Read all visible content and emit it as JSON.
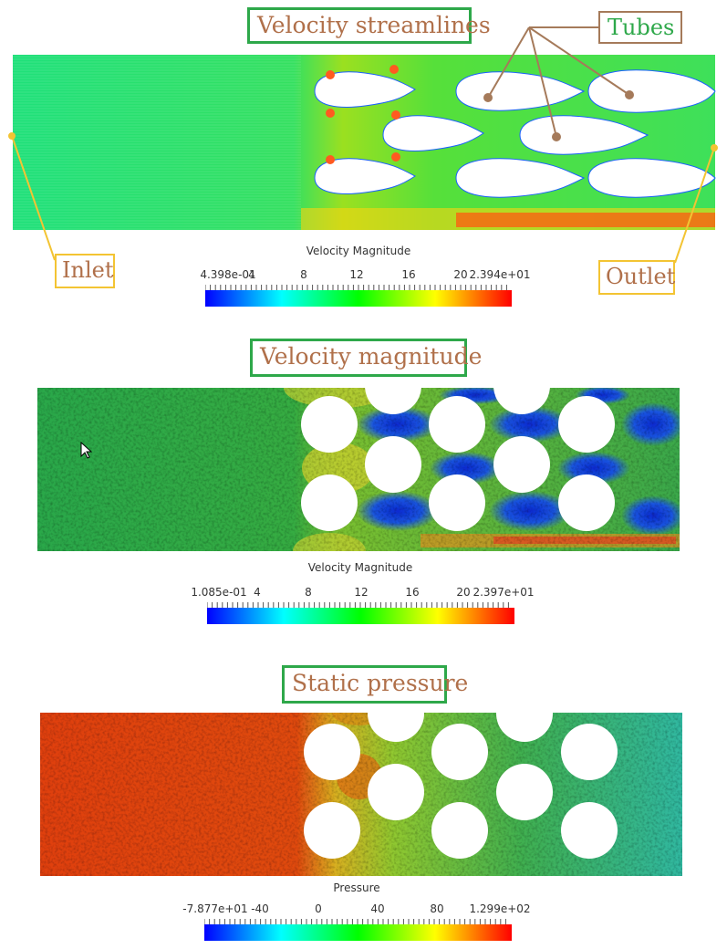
{
  "panel1": {
    "title": "Velocity streamlines",
    "tubes_label": "Tubes",
    "inlet_label": "Inlet",
    "outlet_label": "Outlet",
    "legend": {
      "title": "Velocity Magnitude",
      "ticks": [
        "4.398e-01",
        "4",
        "8",
        "12",
        "16",
        "20",
        "2.394e+01"
      ]
    }
  },
  "panel2": {
    "title": "Velocity magnitude",
    "legend": {
      "title": "Velocity Magnitude",
      "ticks": [
        "1.085e-01",
        "4",
        "8",
        "12",
        "16",
        "20",
        "2.397e+01"
      ]
    }
  },
  "panel3": {
    "title": "Static pressure",
    "legend": {
      "title": "Pressure",
      "ticks": [
        "-7.877e+01",
        "-40",
        "0",
        "40",
        "80",
        "1.299e+02"
      ]
    }
  },
  "colors": {
    "title_border": "#2ea84a",
    "title_text": "#b0704a",
    "label_border": "#f3c433",
    "tubes_border": "#a57a5a",
    "tubes_text": "#2ea84a",
    "colormap": [
      "#0000ff",
      "#00ffff",
      "#00ff00",
      "#ffff00",
      "#ff0000"
    ]
  }
}
